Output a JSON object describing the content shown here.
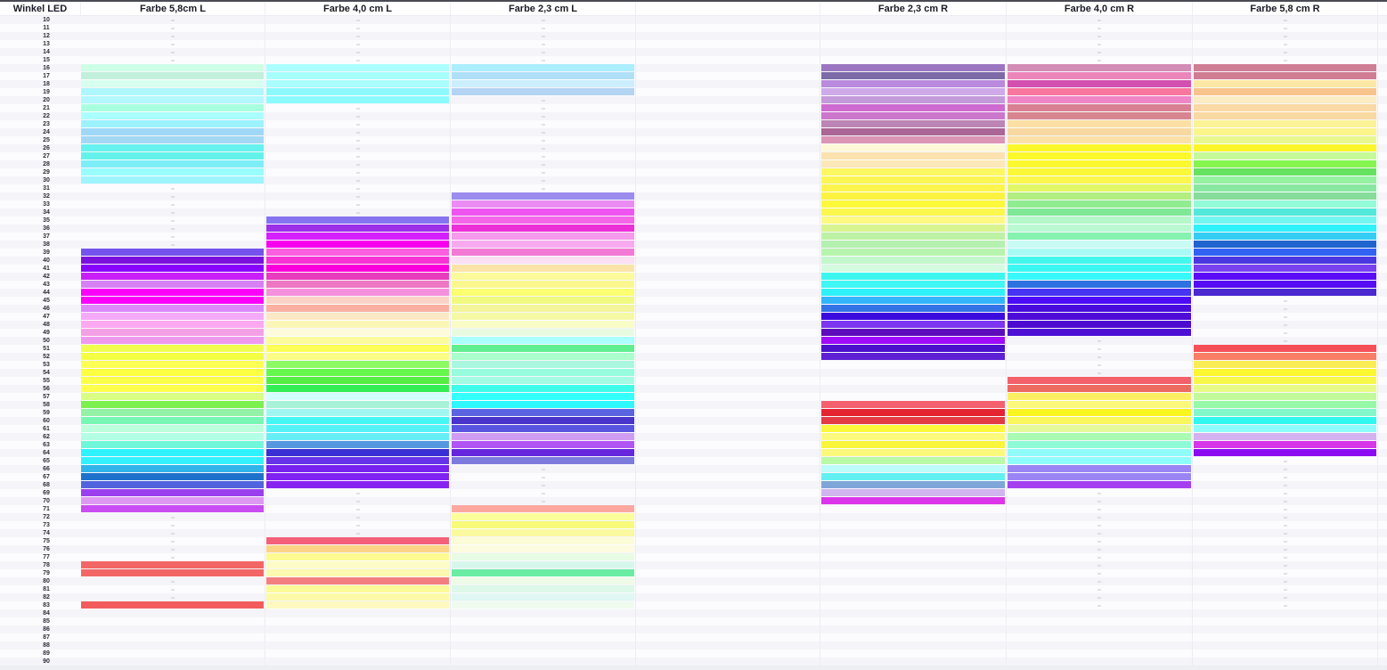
{
  "theme": {
    "top_border_color": "#4a4a54",
    "gridline_color": "#ececf2",
    "row_stripe_even": "#f5f5f9",
    "row_stripe_odd": "#fcfcfe",
    "header_text_color": "#1b1b26",
    "dash_color": "#c6c6cc"
  },
  "header": {
    "row_label_col": "Winkel LED",
    "columns": [
      "Farbe 5,8cm L",
      "Farbe 4,0 cm L",
      "Farbe 2,3 cm L",
      "",
      "Farbe 2,3 cm R",
      "Farbe 4,0 cm R",
      "Farbe 5,8 cm R"
    ]
  },
  "grid": {
    "dash_max_row": 83,
    "columns_with_dashes": [
      0,
      1,
      2,
      4,
      5
    ],
    "column_keys": [
      "farbe-58-l",
      "farbe-40-l",
      "farbe-23-l",
      "farbe-23-r",
      "farbe-40-r",
      "farbe-58-r"
    ],
    "rows": [
      {
        "n": 10,
        "v": [
          "",
          "",
          "",
          "",
          "",
          ""
        ]
      },
      {
        "n": 11,
        "v": [
          "",
          "",
          "",
          "",
          "",
          ""
        ]
      },
      {
        "n": 12,
        "v": [
          "",
          "",
          "",
          "",
          "",
          ""
        ]
      },
      {
        "n": 13,
        "v": [
          "",
          "",
          "",
          "",
          "",
          ""
        ]
      },
      {
        "n": 14,
        "v": [
          "",
          "",
          "",
          "",
          "",
          ""
        ]
      },
      {
        "n": 15,
        "v": [
          "",
          "",
          "",
          "",
          "",
          ""
        ]
      },
      {
        "n": 16,
        "v": [
          "#ccffe6",
          "#aaffff",
          "#aaeeff",
          "#9b76c0",
          "#d28cb5",
          "#d07d96"
        ]
      },
      {
        "n": 17,
        "v": [
          "#c2f0dc",
          "#a6feff",
          "#b0e0f8",
          "#7d6ba8",
          "#ec85ba",
          "#d07d93"
        ]
      },
      {
        "n": 18,
        "v": [
          "#d6fff0",
          "#a8fdff",
          "#cceeff",
          "#b98add",
          "#d350b0",
          "#fce8a4"
        ]
      },
      {
        "n": 19,
        "v": [
          "#adf7ff",
          "#8cf9fc",
          "#b3d4f2",
          "#cfaae8",
          "#f9779e",
          "#f9c48c"
        ]
      },
      {
        "n": 20,
        "v": [
          "#b3f7ff",
          "#8cfbff",
          "",
          "#c49ada",
          "#ef85c5",
          "#fcecc4"
        ]
      },
      {
        "n": 21,
        "v": [
          "#a8ffe0",
          "",
          "",
          "#cf6ad0",
          "#d98093",
          "#fbd9a4"
        ]
      },
      {
        "n": 22,
        "v": [
          "#aaffff",
          "",
          "",
          "#cc77cc",
          "#d88590",
          "#fad8a2"
        ]
      },
      {
        "n": 23,
        "v": [
          "#9cf2ff",
          "",
          "",
          "#bd85b5",
          "#fbdfa4",
          "#fbf396"
        ]
      },
      {
        "n": 24,
        "v": [
          "#9fd8f7",
          "",
          "",
          "#ab6696",
          "#f7d8a0",
          "#fbf58c"
        ]
      },
      {
        "n": 25,
        "v": [
          "#a2d8f4",
          "",
          "",
          "#dc96b5",
          "#fbe0a8",
          "#e9f88e"
        ]
      },
      {
        "n": 26,
        "v": [
          "#66f2ee",
          "",
          "",
          "#fdf8d8",
          "#fbf72a",
          "#fbf62a"
        ]
      },
      {
        "n": 27,
        "v": [
          "#63f2ea",
          "",
          "",
          "#fbe2ae",
          "#fcf82a",
          "#c6f998"
        ]
      },
      {
        "n": 28,
        "v": [
          "#7deef7",
          "",
          "",
          "#fce8b8",
          "#fbf830",
          "#85f54f"
        ]
      },
      {
        "n": 29,
        "v": [
          "#99fcff",
          "",
          "",
          "#fdf760",
          "#fbf838",
          "#65e25f"
        ]
      },
      {
        "n": 30,
        "v": [
          "#9ef4ff",
          "",
          "",
          "#fcf655",
          "#fbf74d",
          "#94f2a0"
        ]
      },
      {
        "n": 31,
        "v": [
          "",
          "",
          "",
          "#fdf54d",
          "#e2f766",
          "#88e8a0"
        ]
      },
      {
        "n": 32,
        "v": [
          "",
          "",
          "#9c8cee",
          "#fcf23f",
          "#b2ee80",
          "#86dc9a"
        ]
      },
      {
        "n": 33,
        "v": [
          "",
          "",
          "#ea8cf4",
          "#fdf83a",
          "#8fec90",
          "#93fbd8"
        ]
      },
      {
        "n": 34,
        "v": [
          "",
          "",
          "#ee55f0",
          "#fcf74d",
          "#7fe896",
          "#52e8da"
        ]
      },
      {
        "n": 35,
        "v": [
          "",
          "#8573f0",
          "#f466e8",
          "#fdf983",
          "#b4f7c8",
          "#73f6f0"
        ]
      },
      {
        "n": 36,
        "v": [
          "",
          "#9c2fe8",
          "#ec30d8",
          "#d7f48f",
          "#baf9d2",
          "#2ff2fb"
        ]
      },
      {
        "n": 37,
        "v": [
          "",
          "#d41fff",
          "#f59aec",
          "#bdf2a4",
          "#85f2b0",
          "#36cdf4"
        ]
      },
      {
        "n": 38,
        "v": [
          "",
          "#f700f0",
          "#f8aaf0",
          "#b4f0b0",
          "#c8fbf4",
          "#2064d0"
        ]
      },
      {
        "n": 39,
        "v": [
          "#7452ec",
          "#fb5fe0",
          "#f27ad4",
          "#b7f4ad",
          "#a8fbf4",
          "#3063f4"
        ]
      },
      {
        "n": 40,
        "v": [
          "#7b10dc",
          "#f733d4",
          "#fbe0f4",
          "#c4f7cb",
          "#44f7ec",
          "#4b38e0"
        ]
      },
      {
        "n": 41,
        "v": [
          "#8804fc",
          "#fa00da",
          "#fbe4a8",
          "#d4fbe0",
          "#3bf7f2",
          "#7a41f0"
        ]
      },
      {
        "n": 42,
        "v": [
          "#c81ef8",
          "#e83bbd",
          "#fcfa9a",
          "#3cf7f0",
          "#37f9fb",
          "#5b0bf6"
        ]
      },
      {
        "n": 43,
        "v": [
          "#d780f4",
          "#ee77c4",
          "#fbf78f",
          "#40f7f4",
          "#2e72e2",
          "#560cf4"
        ]
      },
      {
        "n": 44,
        "v": [
          "#fa00f8",
          "#f590dd",
          "#fbff70",
          "#2ef2fb",
          "#4733f2",
          "#4b28d0"
        ]
      },
      {
        "n": 45,
        "v": [
          "#fc00fc",
          "#fbd2c6",
          "#f0fa80",
          "#33b5fc",
          "#4d0bf6",
          ""
        ]
      },
      {
        "n": 46,
        "v": [
          "#dc88fc",
          "#fbb0a2",
          "#f4f59a",
          "#3373e8",
          "#490cdc",
          ""
        ]
      },
      {
        "n": 47,
        "v": [
          "#f4aaf8",
          "#fce8c4",
          "#f5f9a4",
          "#3b0cdd",
          "#4f0cd8",
          ""
        ]
      },
      {
        "n": 48,
        "v": [
          "#fca8f0",
          "#fcf6b6",
          "#fafcc8",
          "#7c36f0",
          "#4c0ad0",
          ""
        ]
      },
      {
        "n": 49,
        "v": [
          "#f4a0e4",
          "#fdfbdc",
          "#e8fbe0",
          "#5c0cba",
          "#4d10d4",
          ""
        ]
      },
      {
        "n": 50,
        "v": [
          "#ee99ee",
          "#fcfc9c",
          "#aaffff",
          "#a00cfb",
          "",
          ""
        ]
      },
      {
        "n": 51,
        "v": [
          "#f0ff50",
          "#fcff55",
          "#5fee90",
          "#4b10cc",
          "",
          "#f55058"
        ]
      },
      {
        "n": 52,
        "v": [
          "#f4ff44",
          "#fbfc86",
          "#aaffcc",
          "#5e20d4",
          "",
          "#f87e66"
        ]
      },
      {
        "n": 53,
        "v": [
          "#feff55",
          "#8cfa62",
          "#aaf7e0",
          "",
          "",
          "#f9ec55"
        ]
      },
      {
        "n": 54,
        "v": [
          "#fdff41",
          "#66f74d",
          "#97fbde",
          "",
          "",
          "#fcf72e"
        ]
      },
      {
        "n": 55,
        "v": [
          "#fbff4a",
          "#55ee44",
          "#a4fbe4",
          "",
          "#f4606a",
          "#f8f84a"
        ]
      },
      {
        "n": 56,
        "v": [
          "#feff4d",
          "#33ee55",
          "#3ffbea",
          "",
          "#ec6a60",
          "#e8fa86"
        ]
      },
      {
        "n": 57,
        "v": [
          "#d8ff84",
          "#d4ffff",
          "#33ffff",
          "",
          "#fcef62",
          "#c2fa9a"
        ]
      },
      {
        "n": 58,
        "v": [
          "#7bf04e",
          "#a8f2d8",
          "#2ef7ff",
          "#f4606e",
          "#fbf87c",
          "#96f9a8"
        ]
      },
      {
        "n": 59,
        "v": [
          "#93f2a6",
          "#a0f7f2",
          "#5a64e0",
          "#e42430",
          "#faf51e",
          "#82f8ca"
        ]
      },
      {
        "n": 60,
        "v": [
          "#77f7b3",
          "#44f7f2",
          "#4934cc",
          "#e43c44",
          "#f9f75c",
          "#30f8ee"
        ]
      },
      {
        "n": 61,
        "v": [
          "#bbffdd",
          "#55f2f7",
          "#5a55e0",
          "#fbf83d",
          "#e6f99a",
          "#8efcfc"
        ]
      },
      {
        "n": 62,
        "v": [
          "#b3ffe6",
          "#66eef7",
          "#cf9cf2",
          "#fcfa7c",
          "#a9fab2",
          "#d4b2f0"
        ]
      },
      {
        "n": 63,
        "v": [
          "#70f7d9",
          "#5598e0",
          "#b055f4",
          "#f8f53a",
          "#8ffad6",
          "#d636e8"
        ]
      },
      {
        "n": 64,
        "v": [
          "#2ef2ff",
          "#3a2fd4",
          "#6526dd",
          "#fbf97c",
          "#90fbfb",
          "#8c0af2"
        ]
      },
      {
        "n": 65,
        "v": [
          "#33f2ff",
          "#6633e8",
          "#7d7add",
          "#baf9a6",
          "#8ffcfc",
          ""
        ]
      },
      {
        "n": 66,
        "v": [
          "#30b4ea",
          "#7722ee",
          "",
          "#befbfb",
          "#9b84f4",
          ""
        ]
      },
      {
        "n": 67,
        "v": [
          "#1f72cc",
          "#7f22f2",
          "",
          "#62f0f2",
          "#9b85f4",
          ""
        ]
      },
      {
        "n": 68,
        "v": [
          "#5164dd",
          "#8822f0",
          "",
          "#7ea6d8",
          "#a440f0",
          ""
        ]
      },
      {
        "n": 69,
        "v": [
          "#9b3fee",
          "",
          "",
          "#d0b5ee",
          "",
          ""
        ]
      },
      {
        "n": 70,
        "v": [
          "#dd99f2",
          "",
          "",
          "#dc35ea",
          "",
          ""
        ]
      },
      {
        "n": 71,
        "v": [
          "#c94df2",
          "",
          "#fca8a0",
          "",
          "",
          ""
        ]
      },
      {
        "n": 72,
        "v": [
          "",
          "",
          "#fbff99",
          "",
          "",
          ""
        ]
      },
      {
        "n": 73,
        "v": [
          "",
          "",
          "#f8fa7a",
          "",
          "",
          ""
        ]
      },
      {
        "n": 74,
        "v": [
          "",
          "",
          "#fbf9a0",
          "",
          "",
          ""
        ]
      },
      {
        "n": 75,
        "v": [
          "",
          "#f4607a",
          "#fdfcd8",
          "",
          "",
          ""
        ]
      },
      {
        "n": 76,
        "v": [
          "",
          "#fcd488",
          "#fdfce0",
          "",
          "",
          ""
        ]
      },
      {
        "n": 77,
        "v": [
          "",
          "#fcfa90",
          "#e8fbe4",
          "",
          "",
          ""
        ]
      },
      {
        "n": 78,
        "v": [
          "#f26666",
          "#fdfcc8",
          "#d8f7ec",
          "",
          "",
          ""
        ]
      },
      {
        "n": 79,
        "v": [
          "#f26666",
          "#fcf9b0",
          "#6aeca4",
          "",
          "",
          ""
        ]
      },
      {
        "n": 80,
        "v": [
          "",
          "#f28080",
          "#eefbe8",
          "",
          "",
          ""
        ]
      },
      {
        "n": 81,
        "v": [
          "",
          "#fbf998",
          "#ddf7e8",
          "",
          "",
          ""
        ]
      },
      {
        "n": 82,
        "v": [
          "",
          "#fcfaa8",
          "#e0f7f4",
          "",
          "",
          ""
        ]
      },
      {
        "n": 83,
        "v": [
          "#f25c5c",
          "#fdf9c0",
          "#f0fbf0",
          "",
          "",
          ""
        ]
      },
      {
        "n": 84,
        "v": [
          "",
          "",
          "",
          "",
          "",
          ""
        ]
      },
      {
        "n": 85,
        "v": [
          "",
          "",
          "",
          "",
          "",
          ""
        ]
      },
      {
        "n": 86,
        "v": [
          "",
          "",
          "",
          "",
          "",
          ""
        ]
      },
      {
        "n": 87,
        "v": [
          "",
          "",
          "",
          "",
          "",
          ""
        ]
      },
      {
        "n": 88,
        "v": [
          "",
          "",
          "",
          "",
          "",
          ""
        ]
      },
      {
        "n": 89,
        "v": [
          "",
          "",
          "",
          "",
          "",
          ""
        ]
      },
      {
        "n": 90,
        "v": [
          "",
          "",
          "",
          "",
          "",
          ""
        ]
      }
    ]
  }
}
